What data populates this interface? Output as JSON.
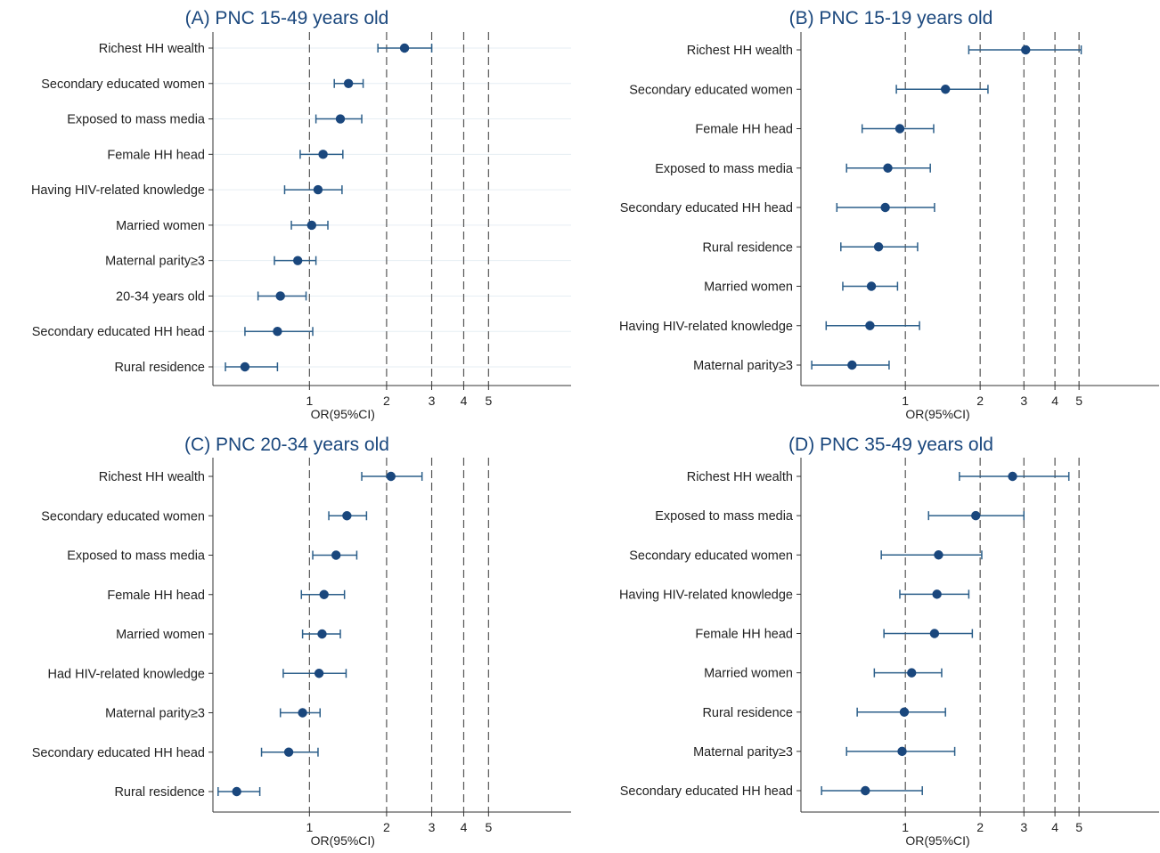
{
  "figure": {
    "colors": {
      "title": "#1a477d",
      "marker": "#1a477d",
      "ci": "#2c5f8a",
      "grid": "#e6eef3",
      "axis": "#333333",
      "text": "#222222",
      "refline": "#555555"
    }
  },
  "chart_data": [
    {
      "type": "forest",
      "title": "(A) PNC 15-49 years old",
      "xlabel": "OR(95%CI)",
      "xscale": "log",
      "xlim": [
        0.42,
        10.5
      ],
      "xticks": [
        1,
        2,
        3,
        4,
        5
      ],
      "xtick_labels": [
        "1",
        "2",
        "3",
        "4",
        "5"
      ],
      "reference_lines": [
        1,
        2,
        3,
        4,
        5
      ],
      "grid": true,
      "rows": [
        {
          "label": "Richest HH wealth",
          "or": 2.35,
          "lo": 1.85,
          "hi": 3.0
        },
        {
          "label": "Secondary educated women",
          "or": 1.42,
          "lo": 1.25,
          "hi": 1.62
        },
        {
          "label": "Exposed to mass media",
          "or": 1.32,
          "lo": 1.06,
          "hi": 1.6
        },
        {
          "label": "Female HH head",
          "or": 1.13,
          "lo": 0.92,
          "hi": 1.35
        },
        {
          "label": "Having HIV-related knowledge",
          "or": 1.08,
          "lo": 0.8,
          "hi": 1.34
        },
        {
          "label": "Married women",
          "or": 1.02,
          "lo": 0.85,
          "hi": 1.18
        },
        {
          "label": "Maternal parity≥3",
          "or": 0.9,
          "lo": 0.73,
          "hi": 1.06
        },
        {
          "label": "20-34 years old",
          "or": 0.77,
          "lo": 0.63,
          "hi": 0.97
        },
        {
          "label": "Secondary educated HH head",
          "or": 0.75,
          "lo": 0.56,
          "hi": 1.03
        },
        {
          "label": "Rural residence",
          "or": 0.56,
          "lo": 0.47,
          "hi": 0.75
        }
      ]
    },
    {
      "type": "forest",
      "title": "(B) PNC 15-19 years old",
      "xlabel": "OR(95%CI)",
      "xscale": "log",
      "xlim": [
        0.38,
        10.5
      ],
      "xticks": [
        1,
        2,
        3,
        4,
        5
      ],
      "xtick_labels": [
        "1",
        "2",
        "3",
        "4",
        "5"
      ],
      "reference_lines": [
        1,
        2,
        3,
        4,
        5
      ],
      "grid": false,
      "rows": [
        {
          "label": "Richest HH wealth",
          "or": 3.05,
          "lo": 1.8,
          "hi": 5.1
        },
        {
          "label": "Secondary educated women",
          "or": 1.45,
          "lo": 0.92,
          "hi": 2.15
        },
        {
          "label": "Female HH head",
          "or": 0.95,
          "lo": 0.67,
          "hi": 1.3
        },
        {
          "label": "Exposed to mass media",
          "or": 0.85,
          "lo": 0.58,
          "hi": 1.26
        },
        {
          "label": "Secondary educated HH head",
          "or": 0.83,
          "lo": 0.53,
          "hi": 1.31
        },
        {
          "label": "Rural residence",
          "or": 0.78,
          "lo": 0.55,
          "hi": 1.12
        },
        {
          "label": "Married women",
          "or": 0.73,
          "lo": 0.56,
          "hi": 0.93
        },
        {
          "label": "Having HIV-related knowledge",
          "or": 0.72,
          "lo": 0.48,
          "hi": 1.14
        },
        {
          "label": "Maternal parity≥3",
          "or": 0.61,
          "lo": 0.42,
          "hi": 0.86
        }
      ]
    },
    {
      "type": "forest",
      "title": "(C) PNC 20-34 years old",
      "xlabel": "OR(95%CI)",
      "xscale": "log",
      "xlim": [
        0.42,
        10.5
      ],
      "xticks": [
        1,
        2,
        3,
        4,
        5
      ],
      "xtick_labels": [
        "1",
        "2",
        "3",
        "4",
        "5"
      ],
      "reference_lines": [
        1,
        2,
        3,
        4,
        5
      ],
      "grid": false,
      "rows": [
        {
          "label": "Richest HH wealth",
          "or": 2.08,
          "lo": 1.6,
          "hi": 2.75
        },
        {
          "label": "Secondary educated women",
          "or": 1.4,
          "lo": 1.19,
          "hi": 1.67
        },
        {
          "label": "Exposed to mass media",
          "or": 1.27,
          "lo": 1.03,
          "hi": 1.53
        },
        {
          "label": "Female HH head",
          "or": 1.14,
          "lo": 0.93,
          "hi": 1.37
        },
        {
          "label": "Married women",
          "or": 1.12,
          "lo": 0.94,
          "hi": 1.32
        },
        {
          "label": "Had HIV-related knowledge",
          "or": 1.09,
          "lo": 0.79,
          "hi": 1.39
        },
        {
          "label": "Maternal parity≥3",
          "or": 0.94,
          "lo": 0.77,
          "hi": 1.1
        },
        {
          "label": "Secondary educated HH head",
          "or": 0.83,
          "lo": 0.65,
          "hi": 1.08
        },
        {
          "label": "Rural residence",
          "or": 0.52,
          "lo": 0.44,
          "hi": 0.64
        }
      ]
    },
    {
      "type": "forest",
      "title": "(D) PNC 35-49 years old",
      "xlabel": "OR(95%CI)",
      "xscale": "log",
      "xlim": [
        0.38,
        10.5
      ],
      "xticks": [
        1,
        2,
        3,
        4,
        5
      ],
      "xtick_labels": [
        "1",
        "2",
        "3",
        "4",
        "5"
      ],
      "reference_lines": [
        1,
        2,
        3,
        4,
        5
      ],
      "grid": false,
      "rows": [
        {
          "label": "Richest HH wealth",
          "or": 2.7,
          "lo": 1.65,
          "hi": 4.55
        },
        {
          "label": "Exposed to mass media",
          "or": 1.92,
          "lo": 1.24,
          "hi": 3.0
        },
        {
          "label": "Secondary educated women",
          "or": 1.36,
          "lo": 0.8,
          "hi": 2.03
        },
        {
          "label": "Having HIV-related knowledge",
          "or": 1.34,
          "lo": 0.95,
          "hi": 1.8
        },
        {
          "label": "Female HH head",
          "or": 1.31,
          "lo": 0.82,
          "hi": 1.86
        },
        {
          "label": "Married women",
          "or": 1.06,
          "lo": 0.75,
          "hi": 1.4
        },
        {
          "label": "Rural residence",
          "or": 0.99,
          "lo": 0.64,
          "hi": 1.45
        },
        {
          "label": "Maternal parity≥3",
          "or": 0.97,
          "lo": 0.58,
          "hi": 1.58
        },
        {
          "label": "Secondary educated HH head",
          "or": 0.69,
          "lo": 0.46,
          "hi": 1.17
        }
      ]
    }
  ]
}
